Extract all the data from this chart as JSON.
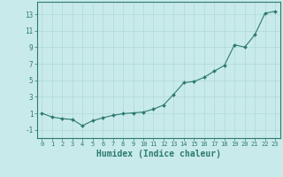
{
  "x_data": [
    0,
    1,
    2,
    3,
    4,
    5,
    6,
    7,
    8,
    9,
    10,
    11,
    12,
    13,
    14,
    15,
    16,
    17,
    18,
    19,
    20,
    21,
    22,
    23
  ],
  "y_data": [
    1.0,
    0.55,
    0.35,
    0.25,
    -0.5,
    0.1,
    0.45,
    0.75,
    0.95,
    1.05,
    1.15,
    1.5,
    2.0,
    3.3,
    4.7,
    4.85,
    5.35,
    6.1,
    6.8,
    9.3,
    9.0,
    10.5,
    13.1,
    13.35
  ],
  "line_color": "#2d7a6e",
  "marker_color": "#2d7a6e",
  "bg_color": "#c8eaea",
  "grid_color": "#b0d8d8",
  "axis_color": "#2d7a6e",
  "xlabel": "Humidex (Indice chaleur)",
  "xlabel_fontsize": 7,
  "yticks": [
    -1,
    1,
    3,
    5,
    7,
    9,
    11,
    13
  ],
  "xticks": [
    0,
    1,
    2,
    3,
    4,
    5,
    6,
    7,
    8,
    9,
    10,
    11,
    12,
    13,
    14,
    15,
    16,
    17,
    18,
    19,
    20,
    21,
    22,
    23
  ],
  "xlim": [
    -0.5,
    23.5
  ],
  "ylim": [
    -2.0,
    14.5
  ]
}
